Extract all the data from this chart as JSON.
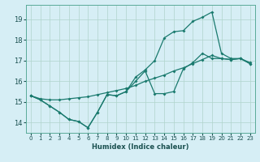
{
  "xlabel": "Humidex (Indice chaleur)",
  "background_color": "#d6eef5",
  "grid_color": "#b0d4cc",
  "line_color": "#1a7a6e",
  "xlim": [
    -0.5,
    23.5
  ],
  "ylim": [
    13.5,
    19.7
  ],
  "yticks": [
    14,
    15,
    16,
    17,
    18,
    19
  ],
  "xticks": [
    0,
    1,
    2,
    3,
    4,
    5,
    6,
    7,
    8,
    9,
    10,
    11,
    12,
    13,
    14,
    15,
    16,
    17,
    18,
    19,
    20,
    21,
    22,
    23
  ],
  "line1_x": [
    0,
    1,
    2,
    3,
    4,
    5,
    6,
    7,
    8,
    9,
    10,
    11,
    12,
    13,
    14,
    15,
    16,
    17,
    18,
    19,
    20,
    21,
    22,
    23
  ],
  "line1_y": [
    15.3,
    15.1,
    14.8,
    14.5,
    14.15,
    14.05,
    13.75,
    14.5,
    15.35,
    15.3,
    15.5,
    16.2,
    16.55,
    17.0,
    18.1,
    18.4,
    18.45,
    18.9,
    19.1,
    19.35,
    17.35,
    17.1,
    17.1,
    16.9
  ],
  "line2_x": [
    0,
    1,
    2,
    3,
    4,
    5,
    6,
    7,
    8,
    9,
    10,
    11,
    12,
    13,
    14,
    15,
    16,
    17,
    18,
    19,
    20,
    21,
    22,
    23
  ],
  "line2_y": [
    15.3,
    15.1,
    14.8,
    14.5,
    14.15,
    14.05,
    13.75,
    14.5,
    15.35,
    15.3,
    15.5,
    16.0,
    16.5,
    15.4,
    15.4,
    15.5,
    16.6,
    16.9,
    17.35,
    17.1,
    17.1,
    17.05,
    17.1,
    16.85
  ],
  "line3_x": [
    0,
    1,
    2,
    3,
    4,
    5,
    6,
    7,
    8,
    9,
    10,
    11,
    12,
    13,
    14,
    15,
    16,
    17,
    18,
    19,
    20,
    21,
    22,
    23
  ],
  "line3_y": [
    15.3,
    15.15,
    15.1,
    15.1,
    15.15,
    15.2,
    15.25,
    15.35,
    15.45,
    15.55,
    15.65,
    15.8,
    16.0,
    16.15,
    16.3,
    16.5,
    16.65,
    16.85,
    17.05,
    17.25,
    17.1,
    17.05,
    17.1,
    16.85
  ]
}
